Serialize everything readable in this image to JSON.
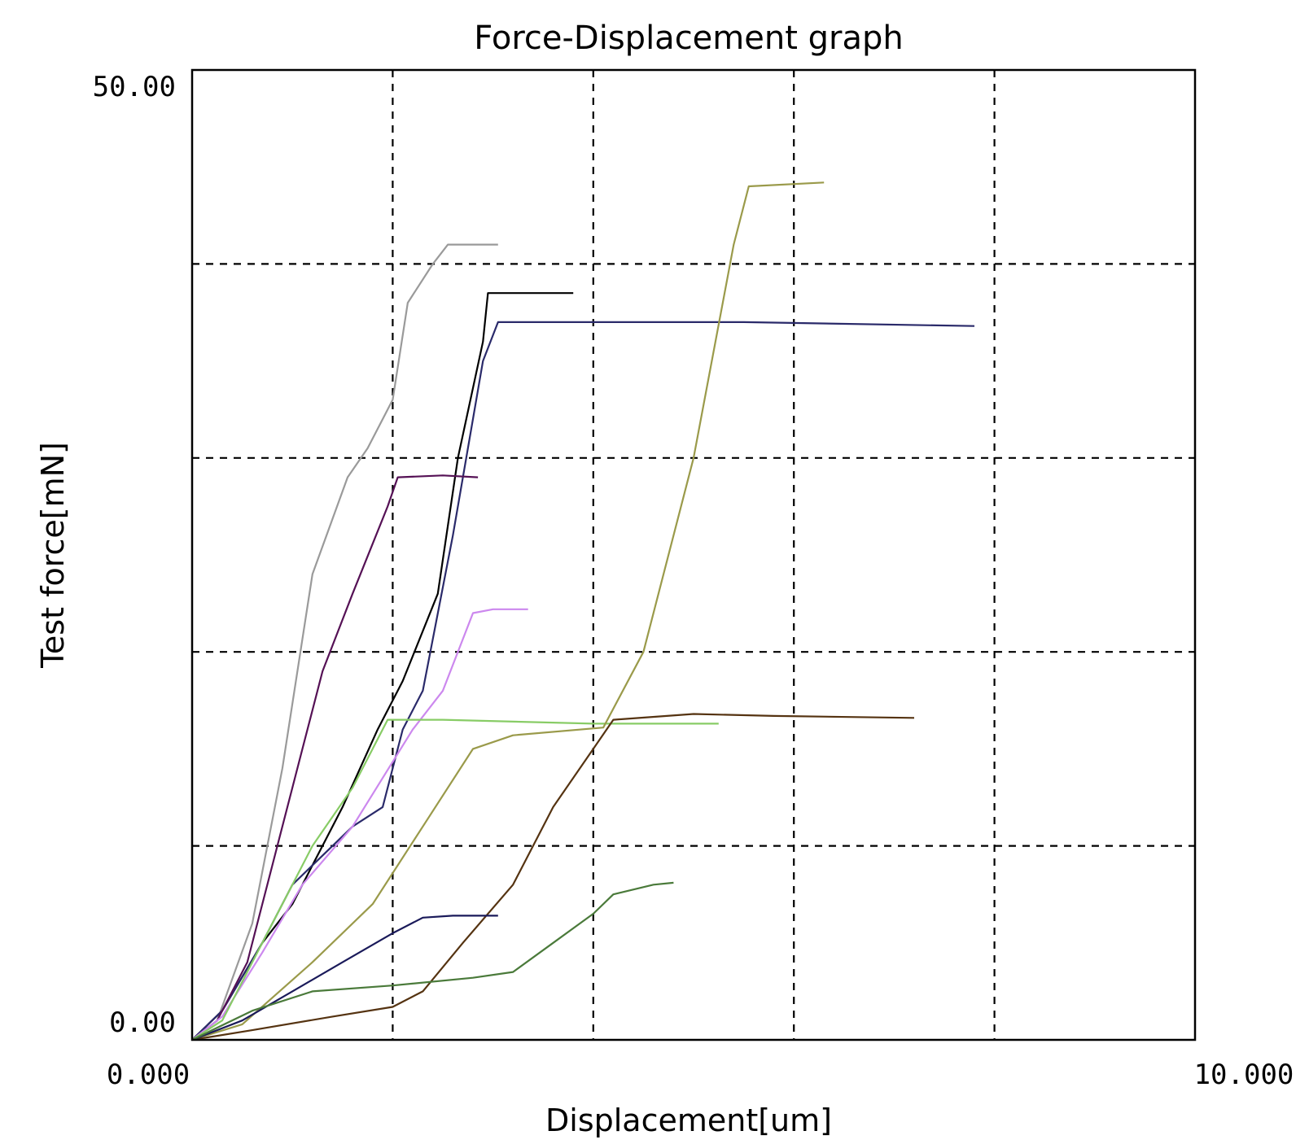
{
  "chart_data": {
    "type": "line",
    "title": "Force-Displacement graph",
    "xlabel": "Displacement[um]",
    "ylabel": "Test force[mN]",
    "xlim": [
      0,
      10
    ],
    "ylim": [
      0,
      50
    ],
    "x_tick_labels": {
      "min": "0.000",
      "max": "10.000"
    },
    "y_tick_labels": {
      "min": "0.00",
      "max": "50.00"
    },
    "grid": {
      "x": [
        2,
        4,
        6,
        8
      ],
      "y": [
        10,
        20,
        30,
        40
      ],
      "style": "dashed"
    },
    "legend": "none",
    "series": [
      {
        "color": "#9a9a9a",
        "points": [
          [
            0,
            0
          ],
          [
            0.25,
            1
          ],
          [
            0.6,
            6
          ],
          [
            0.9,
            14
          ],
          [
            1.2,
            24
          ],
          [
            1.55,
            29
          ],
          [
            1.75,
            30.5
          ],
          [
            2.0,
            33
          ],
          [
            2.15,
            38
          ],
          [
            2.4,
            40
          ],
          [
            2.55,
            41
          ],
          [
            3.05,
            41
          ]
        ]
      },
      {
        "color": "#000000",
        "points": [
          [
            0,
            0
          ],
          [
            0.3,
            1.5
          ],
          [
            0.7,
            5
          ],
          [
            1.0,
            7
          ],
          [
            1.5,
            12
          ],
          [
            1.85,
            16
          ],
          [
            2.05,
            18
          ],
          [
            2.1,
            18.5
          ],
          [
            2.45,
            23
          ],
          [
            2.65,
            30
          ],
          [
            2.9,
            36
          ],
          [
            2.95,
            38.5
          ],
          [
            3.8,
            38.5
          ]
        ]
      },
      {
        "color": "#2a2a6a",
        "points": [
          [
            0,
            0
          ],
          [
            0.3,
            1.5
          ],
          [
            0.7,
            5
          ],
          [
            1.0,
            8
          ],
          [
            1.6,
            11
          ],
          [
            1.9,
            12
          ],
          [
            2.1,
            16
          ],
          [
            2.3,
            18
          ],
          [
            2.6,
            26
          ],
          [
            2.9,
            35
          ],
          [
            3.05,
            37
          ],
          [
            4.5,
            37
          ],
          [
            5.5,
            37
          ],
          [
            7.8,
            36.8
          ]
        ]
      },
      {
        "color": "#551155",
        "points": [
          [
            0,
            0
          ],
          [
            0.25,
            1
          ],
          [
            0.55,
            4
          ],
          [
            0.85,
            10
          ],
          [
            1.1,
            15
          ],
          [
            1.3,
            19
          ],
          [
            1.6,
            23
          ],
          [
            1.95,
            27.5
          ],
          [
            2.05,
            29
          ],
          [
            2.5,
            29.1
          ],
          [
            2.85,
            29
          ]
        ]
      },
      {
        "color": "#cc88ee",
        "points": [
          [
            0,
            0
          ],
          [
            0.3,
            1.2
          ],
          [
            0.7,
            4.5
          ],
          [
            1.1,
            8
          ],
          [
            1.6,
            11
          ],
          [
            2.2,
            16
          ],
          [
            2.5,
            18
          ],
          [
            2.8,
            22
          ],
          [
            3.0,
            22.2
          ],
          [
            3.35,
            22.2
          ]
        ]
      },
      {
        "color": "#88cc66",
        "points": [
          [
            0,
            0
          ],
          [
            0.3,
            1
          ],
          [
            0.6,
            4
          ],
          [
            0.9,
            7
          ],
          [
            1.2,
            10
          ],
          [
            1.6,
            13
          ],
          [
            1.95,
            16.5
          ],
          [
            2.5,
            16.5
          ],
          [
            4.0,
            16.3
          ],
          [
            5.25,
            16.3
          ]
        ]
      },
      {
        "color": "#9a9a4a",
        "points": [
          [
            0,
            0
          ],
          [
            0.5,
            0.8
          ],
          [
            1.2,
            4
          ],
          [
            1.8,
            7
          ],
          [
            2.3,
            11
          ],
          [
            2.8,
            15
          ],
          [
            3.2,
            15.7
          ],
          [
            4.1,
            16.1
          ],
          [
            4.5,
            20
          ],
          [
            5.0,
            30
          ],
          [
            5.4,
            41
          ],
          [
            5.55,
            44
          ],
          [
            6.3,
            44.2
          ]
        ]
      },
      {
        "color": "#553311",
        "points": [
          [
            0,
            0
          ],
          [
            0.6,
            0.5
          ],
          [
            1.4,
            1.2
          ],
          [
            2.0,
            1.7
          ],
          [
            2.3,
            2.5
          ],
          [
            2.7,
            5
          ],
          [
            3.2,
            8
          ],
          [
            3.6,
            12
          ],
          [
            4.0,
            15
          ],
          [
            4.2,
            16.5
          ],
          [
            5.0,
            16.8
          ],
          [
            5.8,
            16.7
          ],
          [
            7.2,
            16.6
          ]
        ]
      },
      {
        "color": "#1a1a5a",
        "points": [
          [
            0,
            0
          ],
          [
            0.5,
            1
          ],
          [
            1.0,
            2.5
          ],
          [
            1.5,
            4
          ],
          [
            2.0,
            5.5
          ],
          [
            2.3,
            6.3
          ],
          [
            2.6,
            6.4
          ],
          [
            3.05,
            6.4
          ]
        ]
      },
      {
        "color": "#4a7a3a",
        "points": [
          [
            0,
            0
          ],
          [
            0.6,
            1.5
          ],
          [
            1.2,
            2.5
          ],
          [
            2.0,
            2.8
          ],
          [
            2.8,
            3.2
          ],
          [
            3.2,
            3.5
          ],
          [
            3.6,
            5
          ],
          [
            4.0,
            6.5
          ],
          [
            4.2,
            7.5
          ],
          [
            4.6,
            8
          ],
          [
            4.8,
            8.1
          ]
        ]
      }
    ]
  }
}
